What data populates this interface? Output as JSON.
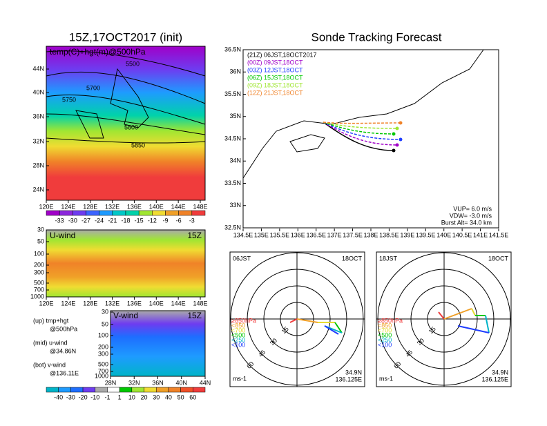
{
  "left_map": {
    "title": "15Z,17OCT2017 (init)",
    "label": "temp(C)+hgt(m)@500hPa",
    "contour_labels": [
      "5500",
      "5700",
      "5750",
      "5800",
      "5850"
    ],
    "yticks": [
      "44N",
      "40N",
      "36N",
      "32N",
      "28N",
      "24N"
    ],
    "xticks": [
      "120E",
      "124E",
      "128E",
      "132E",
      "136E",
      "140E",
      "144E",
      "148E"
    ]
  },
  "colorbar1": [
    "-33",
    "-30",
    "-27",
    "-24",
    "-21",
    "-18",
    "-15",
    "-12",
    "-9",
    "-6",
    "-3"
  ],
  "u_panel": {
    "label": "U-wind",
    "time": "15Z",
    "yticks": [
      "30",
      "50",
      "100",
      "200",
      "300",
      "500",
      "700",
      "1000"
    ],
    "xticks": [
      "120E",
      "124E",
      "128E",
      "132E",
      "136E",
      "140E",
      "144E",
      "148E"
    ]
  },
  "v_panel": {
    "label": "V-wind",
    "time": "15Z",
    "yticks": [
      "30",
      "50",
      "100",
      "200",
      "300",
      "500",
      "700",
      "1000"
    ],
    "xticks": [
      "28N",
      "32N",
      "36N",
      "40N",
      "44N"
    ]
  },
  "notes": [
    "(up) tmp+hgt",
    "@500hPa",
    "(mid) u-wind",
    "@34.86N",
    "(bot) v-wind",
    "@136.11E"
  ],
  "colorbar2": [
    "-40",
    "-30",
    "-20",
    "-10",
    "-1",
    "1",
    "10",
    "20",
    "30",
    "40",
    "50",
    "60"
  ],
  "track": {
    "title": "Sonde Tracking Forecast",
    "legend": [
      {
        "text": "(21Z) 06JST,18OCT2017",
        "color": "#000000"
      },
      {
        "text": "(00Z) 09JST,18OCT",
        "color": "#a000c8"
      },
      {
        "text": "(03Z) 12JST,18OCT",
        "color": "#1e3cff"
      },
      {
        "text": "(06Z) 15JST,18OCT",
        "color": "#00c800"
      },
      {
        "text": "(09Z) 18JST,18OCT",
        "color": "#a0e632"
      },
      {
        "text": "(12Z) 21JST,18OCT",
        "color": "#f08228"
      }
    ],
    "yticks": [
      "36.5N",
      "36N",
      "35.5N",
      "35N",
      "34.5N",
      "34N",
      "33.5N",
      "33N",
      "32.5N"
    ],
    "xticks": [
      "134.5E",
      "135E",
      "135.5E",
      "136E",
      "136.5E",
      "137E",
      "137.5E",
      "138E",
      "138.5E",
      "139E",
      "139.5E",
      "140E",
      "140.5E",
      "141E",
      "141.5E"
    ],
    "params": [
      "VUP= 6.0 m/s",
      "VDW= -3.0 m/s",
      "Burst Alt= 34.0 km"
    ]
  },
  "hodographs": [
    {
      "time": "06JST",
      "date": "18OCT",
      "rings": [
        "15",
        "30",
        "45",
        "60"
      ],
      "unit": "ms-1",
      "lat": "34.9N",
      "lon": "136.125E"
    },
    {
      "time": "18JST",
      "date": "18OCT",
      "rings": [
        "15",
        "30",
        "45",
        "60"
      ],
      "unit": "ms-1",
      "lat": "34.9N",
      "lon": "136.125E"
    }
  ],
  "levels": [
    {
      "text": "≥850hPa",
      "color": "#f03c3c"
    },
    {
      "text": "<850",
      "color": "#f0a028"
    },
    {
      "text": "<700",
      "color": "#e6dc32"
    },
    {
      "text": "<500",
      "color": "#00c800"
    },
    {
      "text": "<250",
      "color": "#00b4c8"
    },
    {
      "text": "<100",
      "color": "#1e3cff"
    }
  ]
}
